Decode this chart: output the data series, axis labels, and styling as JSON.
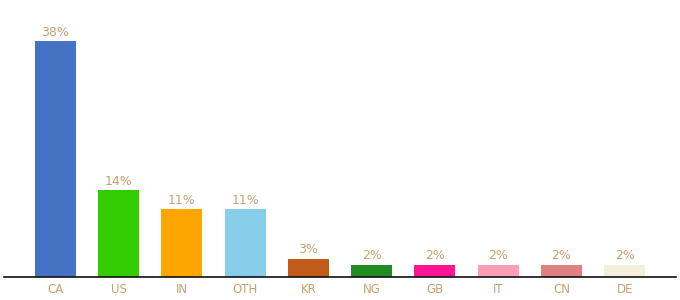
{
  "categories": [
    "CA",
    "US",
    "IN",
    "OTH",
    "KR",
    "NG",
    "GB",
    "IT",
    "CN",
    "DE"
  ],
  "values": [
    38,
    14,
    11,
    11,
    3,
    2,
    2,
    2,
    2,
    2
  ],
  "bar_colors": [
    "#4472c4",
    "#33cc00",
    "#ffa500",
    "#87ceeb",
    "#c25a1a",
    "#228b22",
    "#ff1493",
    "#ff9eb5",
    "#e08080",
    "#f5f0dc"
  ],
  "labels": [
    "38%",
    "14%",
    "11%",
    "11%",
    "3%",
    "2%",
    "2%",
    "2%",
    "2%",
    "2%"
  ],
  "label_color": "#c8a070",
  "label_fontsize": 9,
  "tick_fontsize": 8.5,
  "tick_color": "#c8a070",
  "ylim": [
    0,
    44
  ],
  "bar_width": 0.65,
  "bottom_spine_color": "#111111",
  "background_color": "#ffffff"
}
